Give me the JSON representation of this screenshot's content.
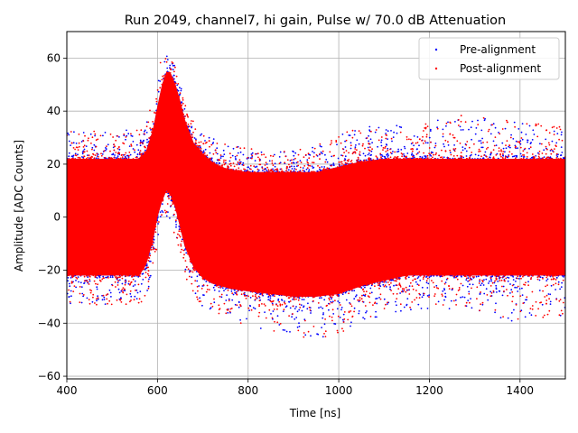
{
  "chart_data": {
    "type": "scatter",
    "title": "Run 2049, channel7, hi gain, Pulse w/ 70.0 dB Attenuation",
    "xlabel": "Time [ns]",
    "ylabel": "Amplitude [ADC Counts]",
    "xlim": [
      400,
      1500
    ],
    "ylim": [
      -61,
      70
    ],
    "xticks": [
      400,
      600,
      800,
      1000,
      1200,
      1400
    ],
    "yticks": [
      -60,
      -40,
      -20,
      0,
      20,
      40,
      60
    ],
    "grid": true,
    "legend_position": "top-right",
    "series": [
      {
        "name": "Pre-alignment",
        "color": "#0000ff",
        "marker": "point"
      },
      {
        "name": "Post-alignment",
        "color": "#ff0000",
        "marker": "point"
      }
    ],
    "envelope": {
      "x": [
        400,
        560,
        575,
        590,
        600,
        610,
        620,
        630,
        640,
        650,
        660,
        680,
        700,
        720,
        740,
        760,
        800,
        850,
        900,
        950,
        1000,
        1050,
        1100,
        1150,
        1200,
        1250,
        1300,
        1350,
        1400,
        1450,
        1500
      ],
      "upper": [
        22,
        22,
        25,
        33,
        42,
        50,
        55,
        54,
        50,
        44,
        37,
        28,
        24,
        21,
        19,
        18,
        17,
        17,
        17,
        17,
        19,
        21,
        22,
        22,
        22,
        22,
        22,
        22,
        22,
        22,
        22
      ],
      "lower": [
        -22,
        -22,
        -18,
        -9,
        0,
        6,
        10,
        8,
        3,
        -4,
        -11,
        -19,
        -23,
        -25,
        -26,
        -27,
        -28,
        -29,
        -30,
        -30,
        -29,
        -26,
        -24,
        -22,
        -22,
        -22,
        -22,
        -22,
        -22,
        -22,
        -22
      ],
      "outlier_max": [
        33,
        33,
        35,
        45,
        55,
        61,
        62,
        60,
        57,
        50,
        44,
        36,
        32,
        30,
        28,
        27,
        26,
        25,
        25,
        27,
        31,
        34,
        35,
        35,
        36,
        38,
        40,
        37,
        36,
        35,
        35
      ],
      "outlier_min": [
        -33,
        -33,
        -30,
        -22,
        -12,
        -4,
        0,
        -2,
        -8,
        -15,
        -22,
        -30,
        -34,
        -37,
        -38,
        -40,
        -42,
        -43,
        -44,
        -47,
        -44,
        -40,
        -37,
        -35,
        -35,
        -35,
        -35,
        -38,
        -40,
        -38,
        -37
      ]
    }
  }
}
